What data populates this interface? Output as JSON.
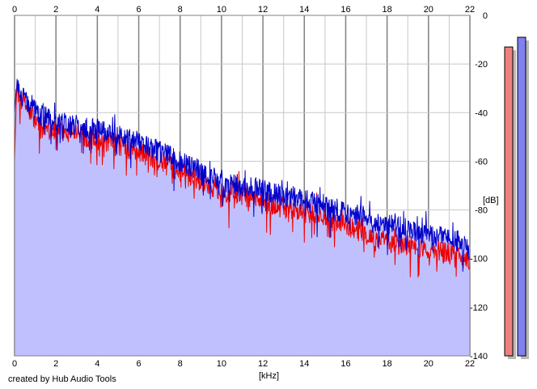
{
  "footer": {
    "credit": "created by Hub Audio Tools"
  },
  "chart_data": {
    "type": "area",
    "title": "",
    "xlabel": "[kHz]",
    "ylabel": "[dB]",
    "xlim": [
      0,
      22
    ],
    "ylim": [
      -140,
      0
    ],
    "x_ticks": [
      0,
      2,
      4,
      6,
      8,
      10,
      12,
      14,
      16,
      18,
      20,
      22
    ],
    "y_ticks": [
      0,
      -20,
      -40,
      -60,
      -80,
      -100,
      -120,
      -140
    ],
    "grid": true,
    "legend": "none",
    "colors": {
      "fill": "#c0c0ff",
      "red_channel": "#ee0000",
      "blue_channel": "#0000cc",
      "grid_minor": "#c8c8c8",
      "grid_major": "#808080",
      "meter_left": "#f08080",
      "meter_right": "#8080f0"
    },
    "series": [
      {
        "color": "red",
        "x": [
          0.0,
          0.1,
          0.2,
          0.4,
          0.6,
          0.8,
          1.0,
          1.2,
          1.5,
          2.0,
          2.5,
          3.0,
          3.5,
          4.0,
          4.5,
          5.0,
          5.5,
          6.0,
          6.5,
          7.0,
          7.5,
          8.0,
          8.5,
          9.0,
          9.5,
          10.0,
          10.5,
          11.0,
          11.5,
          12.0,
          12.5,
          13.0,
          13.5,
          14.0,
          14.5,
          15.0,
          15.5,
          16.0,
          16.5,
          17.0,
          17.5,
          18.0,
          18.5,
          19.0,
          19.5,
          20.0,
          20.5,
          21.0,
          21.5,
          22.0
        ],
        "values": [
          -60,
          -30,
          -32,
          -36,
          -38,
          -41,
          -43,
          -45,
          -46,
          -48,
          -47,
          -48,
          -50,
          -51,
          -52,
          -53,
          -55,
          -56,
          -58,
          -60,
          -62,
          -64,
          -66,
          -68,
          -70,
          -72,
          -73,
          -74,
          -75,
          -77,
          -78,
          -79,
          -80,
          -81,
          -82,
          -83,
          -85,
          -86,
          -88,
          -90,
          -92,
          -93,
          -94,
          -95,
          -95,
          -96,
          -97,
          -98,
          -99,
          -102
        ]
      },
      {
        "color": "blue",
        "x": [
          0.0,
          0.1,
          0.2,
          0.4,
          0.6,
          0.8,
          1.0,
          1.2,
          1.5,
          2.0,
          2.5,
          3.0,
          3.5,
          4.0,
          4.5,
          5.0,
          5.5,
          6.0,
          6.5,
          7.0,
          7.5,
          8.0,
          8.5,
          9.0,
          9.5,
          10.0,
          10.5,
          11.0,
          11.5,
          12.0,
          12.5,
          13.0,
          13.5,
          14.0,
          14.5,
          15.0,
          15.5,
          16.0,
          16.5,
          17.0,
          17.5,
          18.0,
          18.5,
          19.0,
          19.5,
          20.0,
          20.5,
          21.0,
          21.5,
          22.0
        ],
        "values": [
          -40,
          -28,
          -30,
          -34,
          -36,
          -38,
          -39,
          -41,
          -42,
          -44,
          -44,
          -45,
          -46,
          -47,
          -48,
          -49,
          -51,
          -52,
          -54,
          -56,
          -58,
          -60,
          -62,
          -64,
          -66,
          -68,
          -69,
          -70,
          -71,
          -72,
          -73,
          -74,
          -75,
          -76,
          -77,
          -78,
          -80,
          -81,
          -82,
          -83,
          -85,
          -86,
          -87,
          -88,
          -89,
          -90,
          -91,
          -92,
          -93,
          -97
        ]
      }
    ],
    "level_meters": {
      "scale": [
        0,
        -140
      ],
      "left": {
        "color": "red",
        "peak": -13
      },
      "right": {
        "color": "blue",
        "peak": -9
      }
    }
  }
}
